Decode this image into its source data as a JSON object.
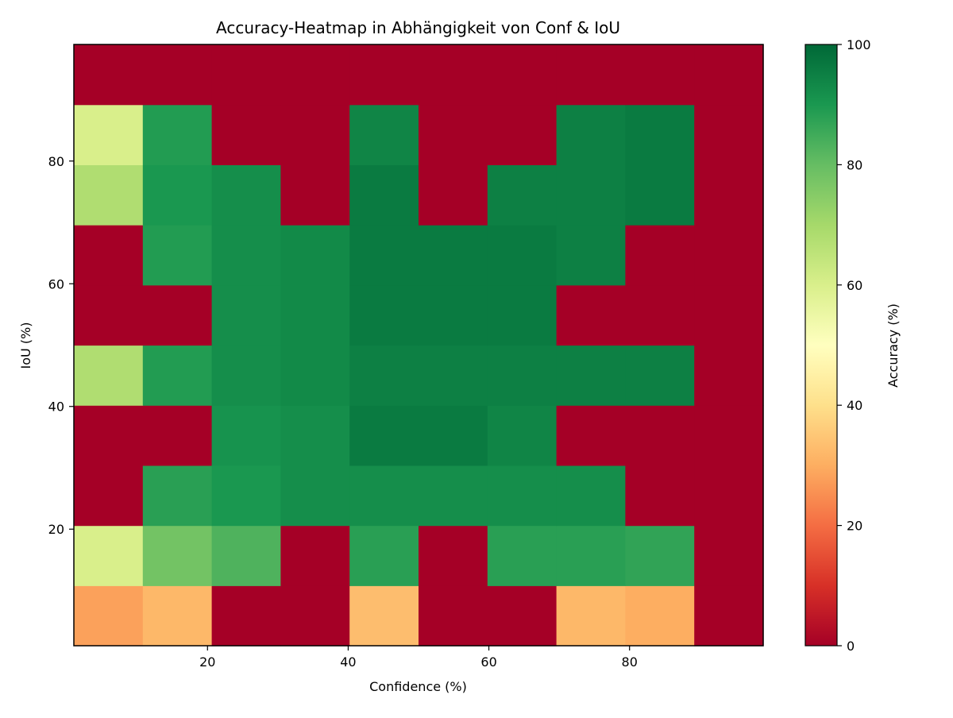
{
  "chart_data": {
    "type": "heatmap",
    "title": "Accuracy-Heatmap in Abhängigkeit von Conf & IoU",
    "xlabel": "Confidence (%)",
    "ylabel": "IoU (%)",
    "colorbar_label": "Accuracy (%)",
    "colormap": "RdYlGn",
    "xlim": [
      1,
      99
    ],
    "ylim": [
      1,
      99
    ],
    "clim": [
      0,
      100
    ],
    "x_ticks": [
      20,
      40,
      60,
      80
    ],
    "y_ticks": [
      20,
      40,
      60,
      80
    ],
    "colorbar_ticks": [
      0,
      20,
      40,
      60,
      80,
      100
    ],
    "x_edges": [
      1,
      10.8,
      20.6,
      30.4,
      40.2,
      50,
      59.8,
      69.6,
      79.4,
      89.2,
      99
    ],
    "y_edges": [
      1,
      10.8,
      20.6,
      30.4,
      40.2,
      50,
      59.8,
      69.6,
      79.4,
      89.2,
      99
    ],
    "grid": false,
    "values": [
      [
        28,
        32,
        0,
        0,
        33,
        0,
        0,
        32,
        30,
        0
      ],
      [
        60,
        78,
        83,
        0,
        88,
        0,
        88,
        88,
        87,
        0
      ],
      [
        0,
        88,
        90,
        92,
        92,
        92,
        92,
        92,
        0,
        0
      ],
      [
        0,
        0,
        91,
        92,
        96,
        96,
        94,
        0,
        0,
        0
      ],
      [
        68,
        89,
        92,
        93,
        95,
        95,
        95,
        95,
        95,
        0
      ],
      [
        0,
        0,
        92,
        93,
        96,
        96,
        96,
        0,
        0,
        0
      ],
      [
        0,
        89,
        92,
        93,
        96,
        96,
        96,
        95,
        0,
        0
      ],
      [
        68,
        90,
        92,
        0,
        96,
        0,
        95,
        95,
        96,
        0
      ],
      [
        60,
        89,
        0,
        0,
        94,
        0,
        0,
        95,
        96,
        0
      ],
      [
        0,
        0,
        0,
        0,
        0,
        0,
        0,
        0,
        0,
        0
      ]
    ]
  }
}
